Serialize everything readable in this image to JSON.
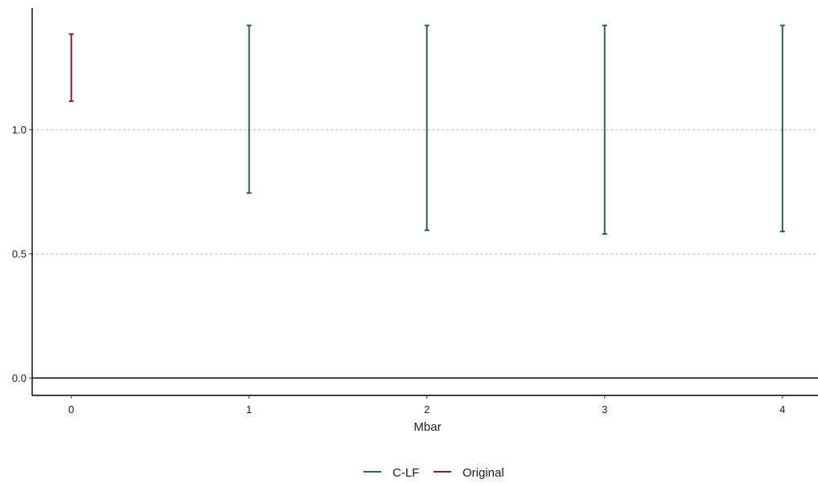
{
  "chart_data": {
    "type": "errorbar",
    "xlabel": "Mbar",
    "ylabel": "",
    "xlim": [
      -0.22,
      4.2
    ],
    "ylim": [
      -0.07,
      1.49
    ],
    "x_ticks": [
      0,
      1,
      2,
      3,
      4
    ],
    "y_ticks": [
      0.0,
      0.5,
      1.0
    ],
    "y_tick_labels": [
      "0.0",
      "0.5",
      "1.0"
    ],
    "x_tick_labels": [
      "0",
      "1",
      "2",
      "3",
      "4"
    ],
    "grid": "horizontal-dotted",
    "zero_line": true,
    "legend_position": "bottom",
    "series": [
      {
        "name": "C-LF",
        "color": "#2f5f4f",
        "points": [
          {
            "x": 1,
            "low": 0.745,
            "high": 1.42
          },
          {
            "x": 2,
            "low": 0.595,
            "high": 1.42
          },
          {
            "x": 3,
            "low": 0.58,
            "high": 1.42
          },
          {
            "x": 4,
            "low": 0.59,
            "high": 1.42
          }
        ]
      },
      {
        "name": "Original",
        "color": "#7a1f3d",
        "points": [
          {
            "x": 0,
            "low": 1.115,
            "high": 1.385
          }
        ]
      }
    ]
  }
}
